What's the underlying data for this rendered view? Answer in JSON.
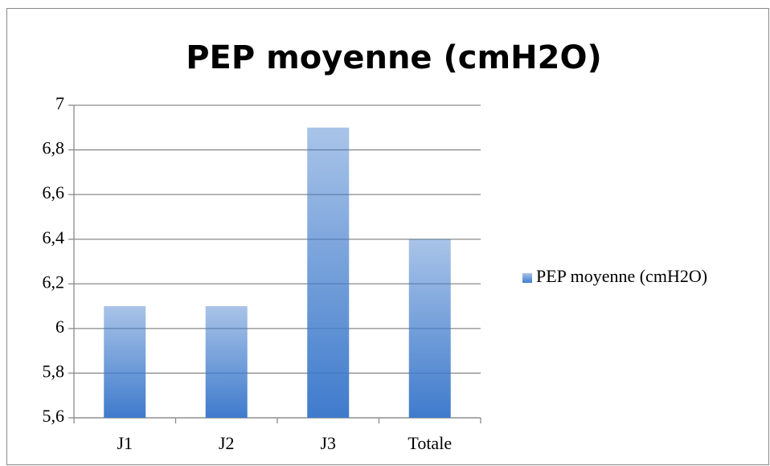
{
  "chart_data": {
    "type": "bar",
    "title": "PEP moyenne (cmH2O)",
    "categories": [
      "J1",
      "J2",
      "J3",
      "Totale"
    ],
    "series": [
      {
        "name": "PEP moyenne (cmH2O)",
        "color": "#3f7bcc",
        "values": [
          6.1,
          6.1,
          6.9,
          6.4
        ]
      }
    ],
    "ylim": [
      5.6,
      7
    ],
    "yticks": [
      {
        "value": 5.6,
        "label": "5,6"
      },
      {
        "value": 5.8,
        "label": "5,8"
      },
      6,
      {
        "value": 6.2,
        "label": "6,2"
      },
      {
        "value": 6.4,
        "label": "6,4"
      },
      {
        "value": 6.6,
        "label": "6,6"
      },
      {
        "value": 6.8,
        "label": "6,8"
      },
      7
    ],
    "grid": true,
    "legend": "right"
  }
}
